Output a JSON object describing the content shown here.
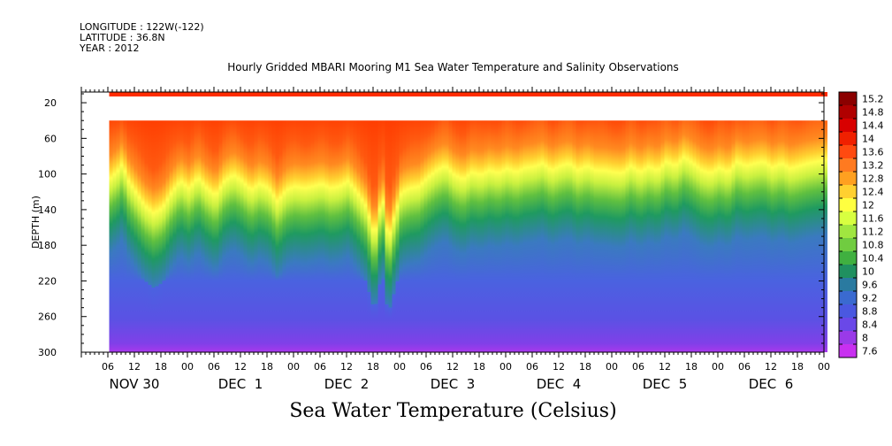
{
  "header": {
    "longitude": "LONGITUDE : 122W(-122)",
    "latitude": "LATITUDE : 36.8N",
    "year": "YEAR : 2012"
  },
  "chart_data": {
    "type": "heatmap",
    "title": "Hourly Gridded MBARI Mooring M1 Sea Water Temperature and Salinity Observations",
    "xlabel": "",
    "ylabel": "DEPTH (m)",
    "bottom_title": "Sea Water Temperature (Celsius)",
    "x_axis": {
      "start_hour": 0,
      "end_hour": 168,
      "hour_ticks": [
        "06",
        "12",
        "18",
        "00",
        "06",
        "12",
        "18",
        "00",
        "06",
        "12",
        "18",
        "00",
        "06",
        "12",
        "18",
        "00",
        "06",
        "12",
        "18",
        "00",
        "06",
        "12",
        "18",
        "00",
        "06",
        "12",
        "18",
        "00",
        "06",
        "12",
        "18",
        "00"
      ],
      "day_labels": [
        "NOV 30",
        "DEC  1",
        "DEC  2",
        "DEC  3",
        "DEC  4",
        "DEC  5",
        "DEC  6"
      ],
      "data_start_hour": 6.3,
      "data_end_hour": 168.8
    },
    "y_axis": {
      "range": [
        300,
        8
      ],
      "ticks": [
        "20",
        "60",
        "100",
        "140",
        "180",
        "220",
        "260",
        "300"
      ],
      "inverted": true
    },
    "missing_depth_band": [
      13,
      40
    ],
    "thermocline_depth": [
      [
        6,
        110
      ],
      [
        8,
        100
      ],
      [
        9,
        92
      ],
      [
        10,
        110
      ],
      [
        12,
        125
      ],
      [
        14,
        140
      ],
      [
        16,
        148
      ],
      [
        18,
        142
      ],
      [
        20,
        125
      ],
      [
        22,
        112
      ],
      [
        24,
        120
      ],
      [
        26,
        108
      ],
      [
        28,
        120
      ],
      [
        30,
        128
      ],
      [
        32,
        112
      ],
      [
        34,
        105
      ],
      [
        36,
        112
      ],
      [
        38,
        122
      ],
      [
        40,
        115
      ],
      [
        42,
        120
      ],
      [
        44,
        135
      ],
      [
        46,
        122
      ],
      [
        48,
        118
      ],
      [
        50,
        120
      ],
      [
        52,
        118
      ],
      [
        54,
        115
      ],
      [
        56,
        120
      ],
      [
        58,
        118
      ],
      [
        60,
        112
      ],
      [
        62,
        125
      ],
      [
        64,
        140
      ],
      [
        66,
        175
      ],
      [
        67,
        145
      ],
      [
        68,
        135
      ],
      [
        69,
        180
      ],
      [
        70,
        160
      ],
      [
        72,
        125
      ],
      [
        74,
        120
      ],
      [
        76,
        118
      ],
      [
        78,
        108
      ],
      [
        80,
        100
      ],
      [
        82,
        95
      ],
      [
        84,
        105
      ],
      [
        86,
        110
      ],
      [
        88,
        102
      ],
      [
        90,
        105
      ],
      [
        92,
        100
      ],
      [
        94,
        103
      ],
      [
        96,
        98
      ],
      [
        98,
        102
      ],
      [
        100,
        97
      ],
      [
        102,
        96
      ],
      [
        104,
        92
      ],
      [
        106,
        100
      ],
      [
        108,
        95
      ],
      [
        110,
        92
      ],
      [
        112,
        100
      ],
      [
        114,
        95
      ],
      [
        116,
        100
      ],
      [
        118,
        100
      ],
      [
        120,
        102
      ],
      [
        122,
        103
      ],
      [
        124,
        95
      ],
      [
        126,
        102
      ],
      [
        128,
        96
      ],
      [
        130,
        100
      ],
      [
        132,
        90
      ],
      [
        134,
        95
      ],
      [
        136,
        85
      ],
      [
        138,
        92
      ],
      [
        140,
        100
      ],
      [
        142,
        103
      ],
      [
        144,
        97
      ],
      [
        146,
        102
      ],
      [
        148,
        90
      ],
      [
        150,
        95
      ],
      [
        152,
        92
      ],
      [
        154,
        90
      ],
      [
        156,
        97
      ],
      [
        158,
        92
      ],
      [
        160,
        98
      ],
      [
        162,
        95
      ],
      [
        164,
        92
      ],
      [
        166,
        90
      ],
      [
        168,
        88
      ]
    ],
    "colorbar": {
      "levels": [
        "15.2",
        "14.8",
        "14.4",
        "14",
        "13.6",
        "13.2",
        "12.8",
        "12.4",
        "12",
        "11.6",
        "11.2",
        "10.8",
        "10.4",
        "10",
        "9.6",
        "9.2",
        "8.8",
        "8.4",
        "8",
        "7.6"
      ],
      "colors": [
        "#8b0000",
        "#b00000",
        "#d80000",
        "#f02000",
        "#ff4a10",
        "#ff7a20",
        "#ffa020",
        "#ffd030",
        "#ffff40",
        "#d8ff40",
        "#a0e640",
        "#70cc40",
        "#40b040",
        "#209060",
        "#2a7aa0",
        "#3a6ad0",
        "#4a58e0",
        "#6a48e8",
        "#9a3ae8",
        "#c830f0"
      ]
    }
  }
}
